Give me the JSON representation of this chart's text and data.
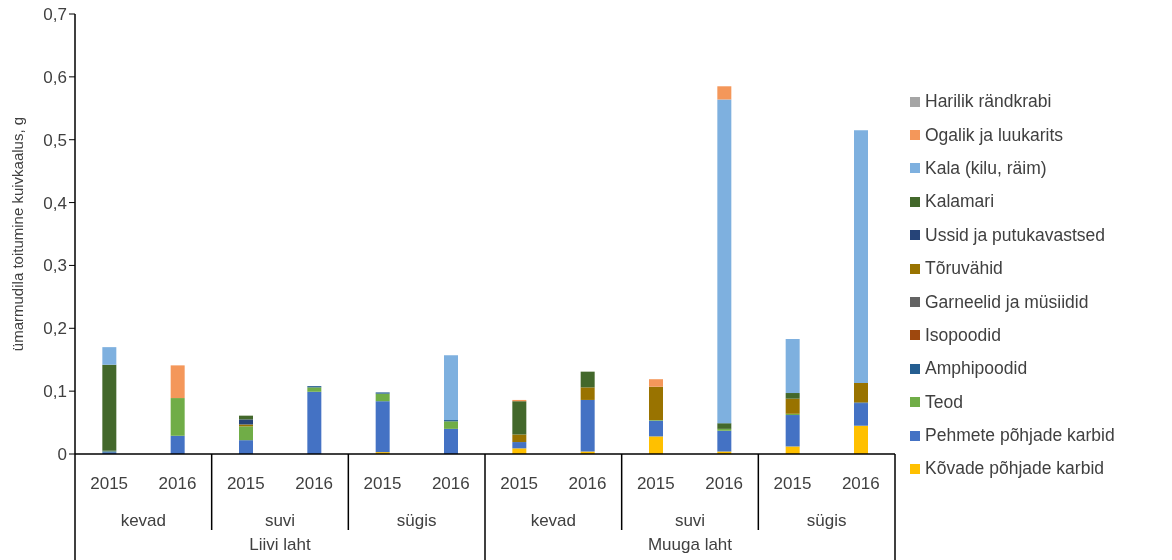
{
  "chart_data": {
    "type": "bar",
    "stacked": true,
    "ylabel": "ümarmudila toitumine kuivkaalus, g",
    "categories": [
      "2015",
      "2016",
      "2015",
      "2016",
      "2015",
      "2016",
      "2015",
      "2016",
      "2015",
      "2016",
      "2015",
      "2016"
    ],
    "annotations": [
      "kevad",
      "suvi",
      "sügis",
      "kevad",
      "suvi",
      "sügis",
      "Liivi laht",
      "Muuga laht"
    ],
    "ylim": [
      0,
      0.7
    ],
    "yticks": [
      0,
      {
        "value": 0.1,
        "label": "0,1"
      },
      {
        "value": 0.2,
        "label": "0,2"
      },
      {
        "value": 0.3,
        "label": "0,3"
      },
      {
        "value": 0.4,
        "label": "0,4"
      },
      {
        "value": 0.5,
        "label": "0,5"
      },
      {
        "value": 0.6,
        "label": "0,6"
      },
      {
        "value": 0.7,
        "label": "0,7"
      }
    ],
    "grid": false,
    "legend": "right",
    "series": [
      {
        "name": "Kõvade põhjade karbid",
        "color": "#ffc000",
        "values": [
          0,
          0,
          0,
          0,
          0.003,
          0,
          0.009,
          0.004,
          0.028,
          0.004,
          0.012,
          0.045
        ]
      },
      {
        "name": "Pehmete põhjade karbid",
        "color": "#4472c4",
        "values": [
          0.003,
          0.029,
          0.022,
          0.099,
          0.081,
          0.04,
          0.01,
          0.082,
          0.025,
          0.033,
          0.05,
          0.036
        ]
      },
      {
        "name": "Teod",
        "color": "#70ad47",
        "values": [
          0.001,
          0.06,
          0.022,
          0.007,
          0.012,
          0.012,
          0,
          0,
          0.001,
          0.003,
          0.002,
          0
        ]
      },
      {
        "name": "Amphipoodid",
        "color": "#255e91",
        "values": [
          0.001,
          0,
          0,
          0.002,
          0.002,
          0.002,
          0,
          0,
          0,
          null,
          0,
          0.001
        ]
      },
      {
        "name": "Isopoodid",
        "color": "#9e480e",
        "values": [
          0,
          0,
          0,
          0,
          0,
          0,
          0,
          0,
          0,
          0,
          0,
          0
        ]
      },
      {
        "name": "Garneelid ja müsiidid",
        "color": "#636363",
        "values": [
          0,
          0,
          0,
          0,
          0,
          0,
          0,
          0,
          0,
          0,
          0,
          0
        ]
      },
      {
        "name": "Tõruvähid",
        "color": "#997300",
        "values": [
          0,
          0,
          0.003,
          0,
          0,
          0,
          0.012,
          0.02,
          0.053,
          0,
          0.024,
          0.031
        ]
      },
      {
        "name": "Ussid ja putukavastsed",
        "color": "#264478",
        "values": [
          0,
          0,
          0.008,
          0,
          0,
          0,
          0,
          0,
          0,
          0,
          0,
          0
        ]
      },
      {
        "name": "Kalamari",
        "color": "#43682b",
        "values": [
          0.137,
          0,
          0.006,
          0,
          0,
          0,
          0.053,
          0.025,
          0,
          0.009,
          0.009,
          0
        ]
      },
      {
        "name": "Kala (kilu, räim)",
        "color": "#7eb0df",
        "values": [
          0.028,
          0,
          0,
          0,
          0,
          0.103,
          0,
          0,
          0,
          0.515,
          0.086,
          0.402
        ]
      },
      {
        "name": "Ogalik ja luukarits",
        "color": "#f4975a",
        "values": [
          0,
          0.052,
          0,
          0,
          0,
          0,
          0.002,
          0,
          0.012,
          0.021,
          0,
          0
        ]
      },
      {
        "name": "Harilik rändkrabi",
        "color": "#a5a5a5",
        "values": [
          0,
          0,
          0,
          0,
          0,
          0,
          0,
          0,
          0,
          0,
          0,
          0
        ]
      }
    ]
  }
}
